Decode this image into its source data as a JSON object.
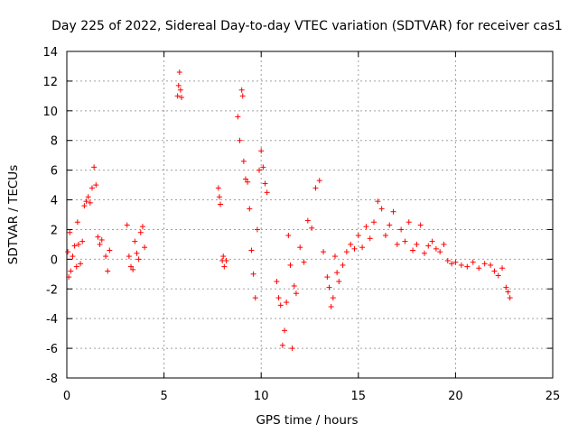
{
  "chart_data": {
    "type": "scatter",
    "title": "Day 225 of 2022, Sidereal Day-to-day VTEC variation (SDTVAR) for receiver cas1",
    "xlabel": "GPS time / hours",
    "ylabel": "SDTVAR / TECUs",
    "xlim": [
      0,
      25
    ],
    "ylim": [
      -8,
      14
    ],
    "x_ticks": [
      0,
      5,
      10,
      15,
      20,
      25
    ],
    "x_tick_labels": [
      "0",
      "5",
      "10",
      "15",
      "20",
      "25"
    ],
    "y_ticks": [
      -8,
      -6,
      -4,
      -2,
      0,
      2,
      4,
      6,
      8,
      10,
      12,
      14
    ],
    "y_tick_labels": [
      "-8",
      "-6",
      "-4",
      "-2",
      "0",
      "2",
      "4",
      "6",
      "8",
      "10",
      "12",
      "14"
    ],
    "grid": true,
    "marker": "+",
    "color": "#ff0000",
    "series": [
      {
        "name": "SDTVAR",
        "x": [
          0.05,
          0.1,
          0.15,
          0.2,
          0.3,
          0.4,
          0.5,
          0.55,
          0.6,
          0.7,
          0.8,
          0.9,
          1.0,
          1.1,
          1.2,
          1.3,
          1.4,
          1.5,
          1.6,
          1.7,
          1.8,
          2.0,
          2.1,
          2.2,
          3.1,
          3.2,
          3.3,
          3.4,
          3.5,
          3.6,
          3.7,
          3.8,
          3.9,
          4.0,
          5.7,
          5.75,
          5.8,
          5.85,
          5.9,
          7.8,
          7.85,
          7.9,
          8.0,
          8.05,
          8.1,
          8.2,
          8.8,
          8.9,
          9.0,
          9.05,
          9.1,
          9.2,
          9.3,
          9.4,
          9.5,
          9.6,
          9.7,
          9.8,
          9.9,
          10.0,
          10.1,
          10.2,
          10.3,
          10.8,
          10.9,
          11.0,
          11.1,
          11.2,
          11.3,
          11.4,
          11.5,
          11.6,
          11.7,
          11.8,
          12.0,
          12.2,
          12.4,
          12.6,
          12.8,
          13.0,
          13.2,
          13.4,
          13.5,
          13.6,
          13.7,
          13.8,
          13.9,
          14.0,
          14.2,
          14.4,
          14.6,
          14.8,
          15.0,
          15.2,
          15.4,
          15.6,
          15.8,
          16.0,
          16.2,
          16.4,
          16.6,
          16.8,
          17.0,
          17.2,
          17.4,
          17.6,
          17.8,
          18.0,
          18.2,
          18.4,
          18.6,
          18.8,
          19.0,
          19.2,
          19.4,
          19.6,
          19.8,
          20.0,
          20.3,
          20.6,
          20.9,
          21.2,
          21.5,
          21.8,
          22.0,
          22.2,
          22.4,
          22.6,
          22.7,
          22.8
        ],
        "y": [
          0.5,
          -1.2,
          1.8,
          -0.8,
          0.2,
          0.9,
          -0.5,
          2.5,
          1.0,
          -0.3,
          1.2,
          3.6,
          3.9,
          4.2,
          3.8,
          4.8,
          6.2,
          5.0,
          1.5,
          1.0,
          1.3,
          0.2,
          -0.8,
          0.6,
          2.3,
          0.2,
          -0.5,
          -0.7,
          1.2,
          0.4,
          0.0,
          1.8,
          2.2,
          0.8,
          11.0,
          11.7,
          12.6,
          11.4,
          10.9,
          4.8,
          4.2,
          3.7,
          -0.1,
          0.2,
          -0.5,
          -0.1,
          9.6,
          8.0,
          11.4,
          11.0,
          6.6,
          5.4,
          5.2,
          3.4,
          0.6,
          -1.0,
          -2.6,
          2.0,
          6.0,
          7.3,
          6.2,
          5.1,
          4.5,
          -1.5,
          -2.6,
          -3.1,
          -5.8,
          -4.8,
          -2.9,
          1.6,
          -0.4,
          -6.0,
          -1.8,
          -2.3,
          0.8,
          -0.2,
          2.6,
          2.1,
          4.8,
          5.3,
          0.5,
          -1.2,
          -1.9,
          -3.2,
          -2.6,
          0.2,
          -0.9,
          -1.5,
          -0.4,
          0.5,
          1.0,
          0.7,
          1.6,
          0.8,
          2.2,
          1.4,
          2.5,
          3.9,
          3.4,
          1.6,
          2.3,
          3.2,
          1.0,
          2.0,
          1.2,
          2.5,
          0.6,
          1.0,
          2.3,
          0.4,
          0.9,
          1.2,
          0.7,
          0.5,
          1.0,
          -0.1,
          -0.3,
          -0.2,
          -0.4,
          -0.5,
          -0.2,
          -0.6,
          -0.3,
          -0.4,
          -0.8,
          -1.1,
          -0.6,
          -1.9,
          -2.2,
          -2.6
        ]
      }
    ]
  }
}
